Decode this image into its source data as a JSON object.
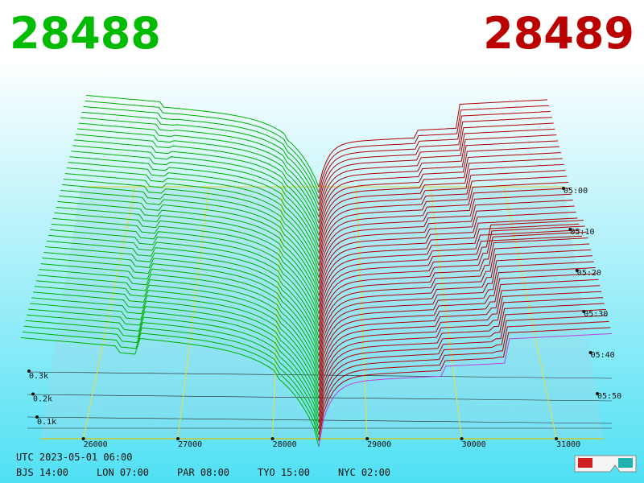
{
  "header": {
    "bid": "28488",
    "ask": "28489"
  },
  "price_axis": {
    "labels": [
      "26000",
      "27000",
      "28000",
      "29000",
      "30000",
      "31000"
    ]
  },
  "time_axis": {
    "labels": [
      "05:00",
      "05:10",
      "05:20",
      "05:30",
      "05:40",
      "05:50"
    ]
  },
  "volume_axis": {
    "labels": [
      "0.3k",
      "0.2k",
      "0.1k"
    ]
  },
  "footer": {
    "utc": "UTC 2023-05-01 06:00",
    "zones": [
      "BJS 14:00",
      "LON 07:00",
      "PAR 08:00",
      "TYO 15:00",
      "NYC 02:00"
    ]
  }
}
